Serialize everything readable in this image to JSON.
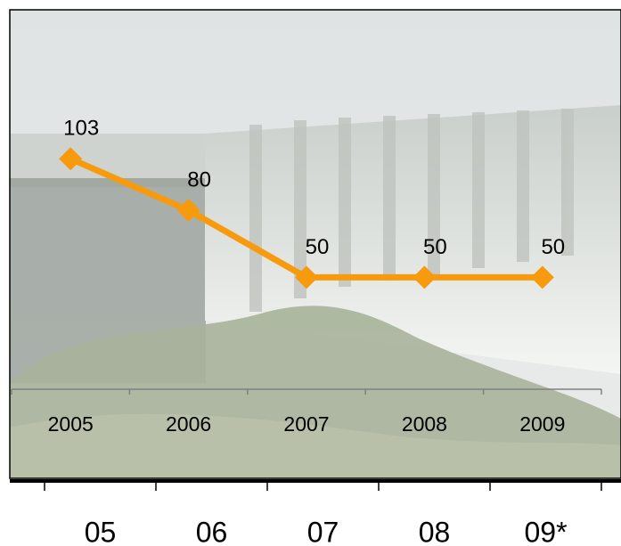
{
  "chart_data": {
    "type": "line",
    "categories": [
      "2005",
      "2006",
      "2007",
      "2008",
      "2009"
    ],
    "values": [
      103,
      80,
      50,
      50,
      50
    ],
    "color": "#f79a0e",
    "ylim": [
      0,
      170
    ],
    "x2_categories": [
      "05",
      "06",
      "07",
      "08",
      "09*"
    ]
  }
}
